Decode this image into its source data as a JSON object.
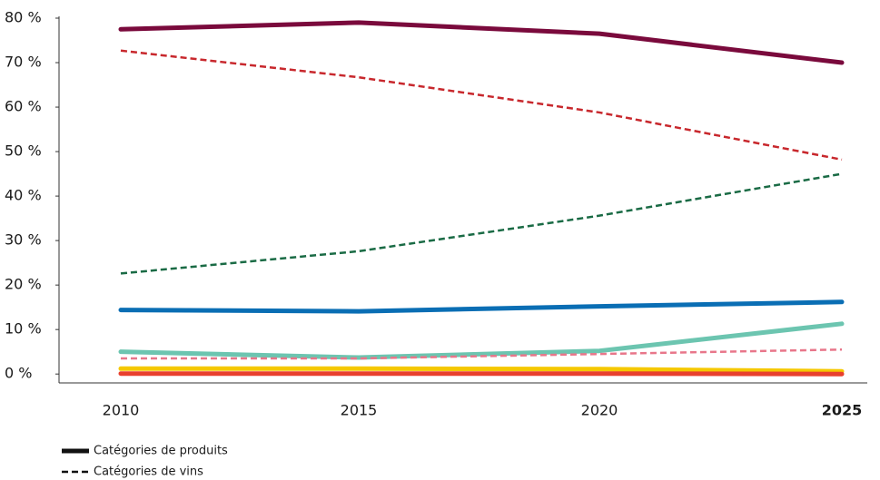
{
  "chart_data": {
    "type": "line",
    "categories": [
      "2010",
      "2015",
      "2020",
      "2025"
    ],
    "ylim": [
      -2,
      80
    ],
    "yticks": [
      {
        "value": 0,
        "label": "0 %"
      },
      {
        "value": 10,
        "label": "10 %"
      },
      {
        "value": 20,
        "label": "20 %"
      },
      {
        "value": 30,
        "label": "30 %"
      },
      {
        "value": 40,
        "label": "40 %"
      },
      {
        "value": 50,
        "label": "50 %"
      },
      {
        "value": 60,
        "label": "60 %"
      },
      {
        "value": 70,
        "label": "70 %"
      },
      {
        "value": 80,
        "label": "80 %"
      }
    ],
    "series": [
      {
        "color": "#7a0a3c",
        "dashed": false,
        "values": [
          77.5,
          79,
          76.5,
          70
        ]
      },
      {
        "color": "#c8282d",
        "dashed": true,
        "values": [
          72.7,
          66.7,
          58.8,
          48.2
        ]
      },
      {
        "color": "#1a6b45",
        "dashed": true,
        "values": [
          22.6,
          27.6,
          35.6,
          45
        ]
      },
      {
        "color": "#0a6eb4",
        "dashed": false,
        "values": [
          14.4,
          14.1,
          15.2,
          16.2
        ]
      },
      {
        "color": "#6cc5b0",
        "dashed": false,
        "values": [
          5,
          3.7,
          5.2,
          11.3
        ]
      },
      {
        "color": "#e8768a",
        "dashed": true,
        "values": [
          3.5,
          3.5,
          4.5,
          5.5
        ]
      },
      {
        "color": "#f5c800",
        "dashed": false,
        "values": [
          1.2,
          1.2,
          1.1,
          0.6
        ]
      },
      {
        "color": "#e8402e",
        "dashed": false,
        "values": [
          0.1,
          0.1,
          0.1,
          0
        ]
      }
    ],
    "legend": [
      {
        "label": "Catégories de produits",
        "dashed": false
      },
      {
        "label": "Catégories de vins",
        "dashed": true
      }
    ]
  }
}
